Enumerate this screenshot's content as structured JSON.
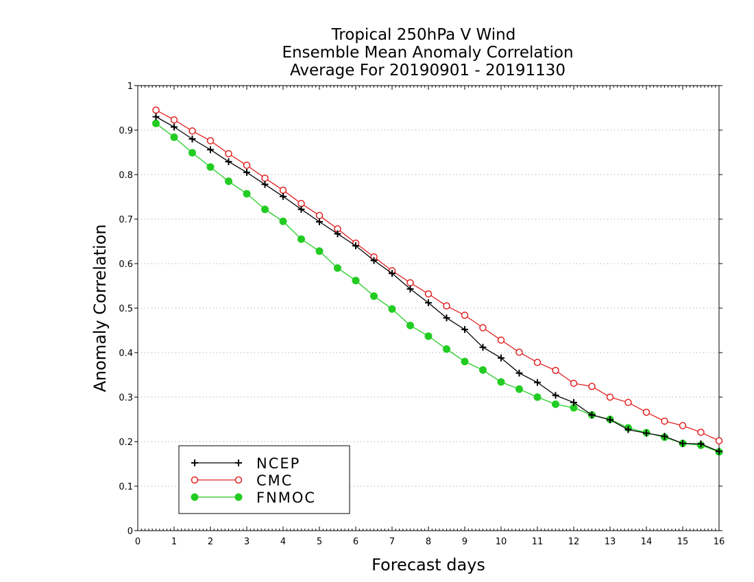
{
  "chart_data": {
    "type": "line",
    "title_lines": [
      "Tropical 250hPa V Wind",
      "Ensemble Mean Anomaly Correlation",
      "Average For 20190901 - 20191130"
    ],
    "xlabel": "Forecast days",
    "ylabel": "Anomaly Correlation",
    "xlim": [
      0,
      16
    ],
    "ylim": [
      0,
      1
    ],
    "x_ticks": [
      0,
      1,
      2,
      3,
      4,
      5,
      6,
      7,
      8,
      9,
      10,
      11,
      12,
      13,
      14,
      15,
      16
    ],
    "x_tick_labels": [
      "0",
      "1",
      "2",
      "3",
      "4",
      "5",
      "6",
      "7",
      "8",
      "9",
      "10",
      "11",
      "12",
      "13",
      "14",
      "15",
      "16"
    ],
    "y_ticks": [
      0,
      0.1,
      0.2,
      0.3,
      0.4,
      0.5,
      0.6,
      0.7,
      0.8,
      0.9,
      1
    ],
    "y_tick_labels": [
      "0",
      "0.1",
      "0.2",
      "0.3",
      "0.4",
      "0.5",
      "0.6",
      "0.7",
      "0.8",
      "0.9",
      "1"
    ],
    "grid": "horizontal dotted",
    "legend_position": "bottom-left",
    "x": [
      0.5,
      1,
      1.5,
      2,
      2.5,
      3,
      3.5,
      4,
      4.5,
      5,
      5.5,
      6,
      6.5,
      7,
      7.5,
      8,
      8.5,
      9,
      9.5,
      10,
      10.5,
      11,
      11.5,
      12,
      12.5,
      13,
      13.5,
      14,
      14.5,
      15,
      15.5,
      16
    ],
    "series": [
      {
        "name": "NCEP",
        "color": "#000000",
        "marker": "plus",
        "values": [
          0.93,
          0.907,
          0.88,
          0.856,
          0.829,
          0.805,
          0.778,
          0.751,
          0.722,
          0.694,
          0.667,
          0.64,
          0.607,
          0.578,
          0.543,
          0.512,
          0.478,
          0.452,
          0.412,
          0.388,
          0.354,
          0.333,
          0.304,
          0.288,
          0.26,
          0.249,
          0.227,
          0.219,
          0.212,
          0.196,
          0.195,
          0.178
        ]
      },
      {
        "name": "CMC",
        "color": "#e02020",
        "marker": "open-circle",
        "values": [
          0.945,
          0.923,
          0.898,
          0.876,
          0.847,
          0.821,
          0.792,
          0.765,
          0.735,
          0.708,
          0.678,
          0.646,
          0.615,
          0.584,
          0.557,
          0.532,
          0.505,
          0.484,
          0.456,
          0.428,
          0.401,
          0.378,
          0.36,
          0.331,
          0.324,
          0.3,
          0.288,
          0.266,
          0.246,
          0.236,
          0.221,
          0.202
        ]
      },
      {
        "name": "FNMOC",
        "color": "#22cc22",
        "marker": "filled-circle",
        "values": [
          0.915,
          0.884,
          0.849,
          0.817,
          0.785,
          0.757,
          0.722,
          0.695,
          0.655,
          0.628,
          0.59,
          0.562,
          0.527,
          0.498,
          0.461,
          0.437,
          0.408,
          0.38,
          0.361,
          0.334,
          0.318,
          0.3,
          0.284,
          0.276,
          0.26,
          0.25,
          0.231,
          0.22,
          0.21,
          0.196,
          0.192,
          0.177
        ]
      }
    ]
  }
}
